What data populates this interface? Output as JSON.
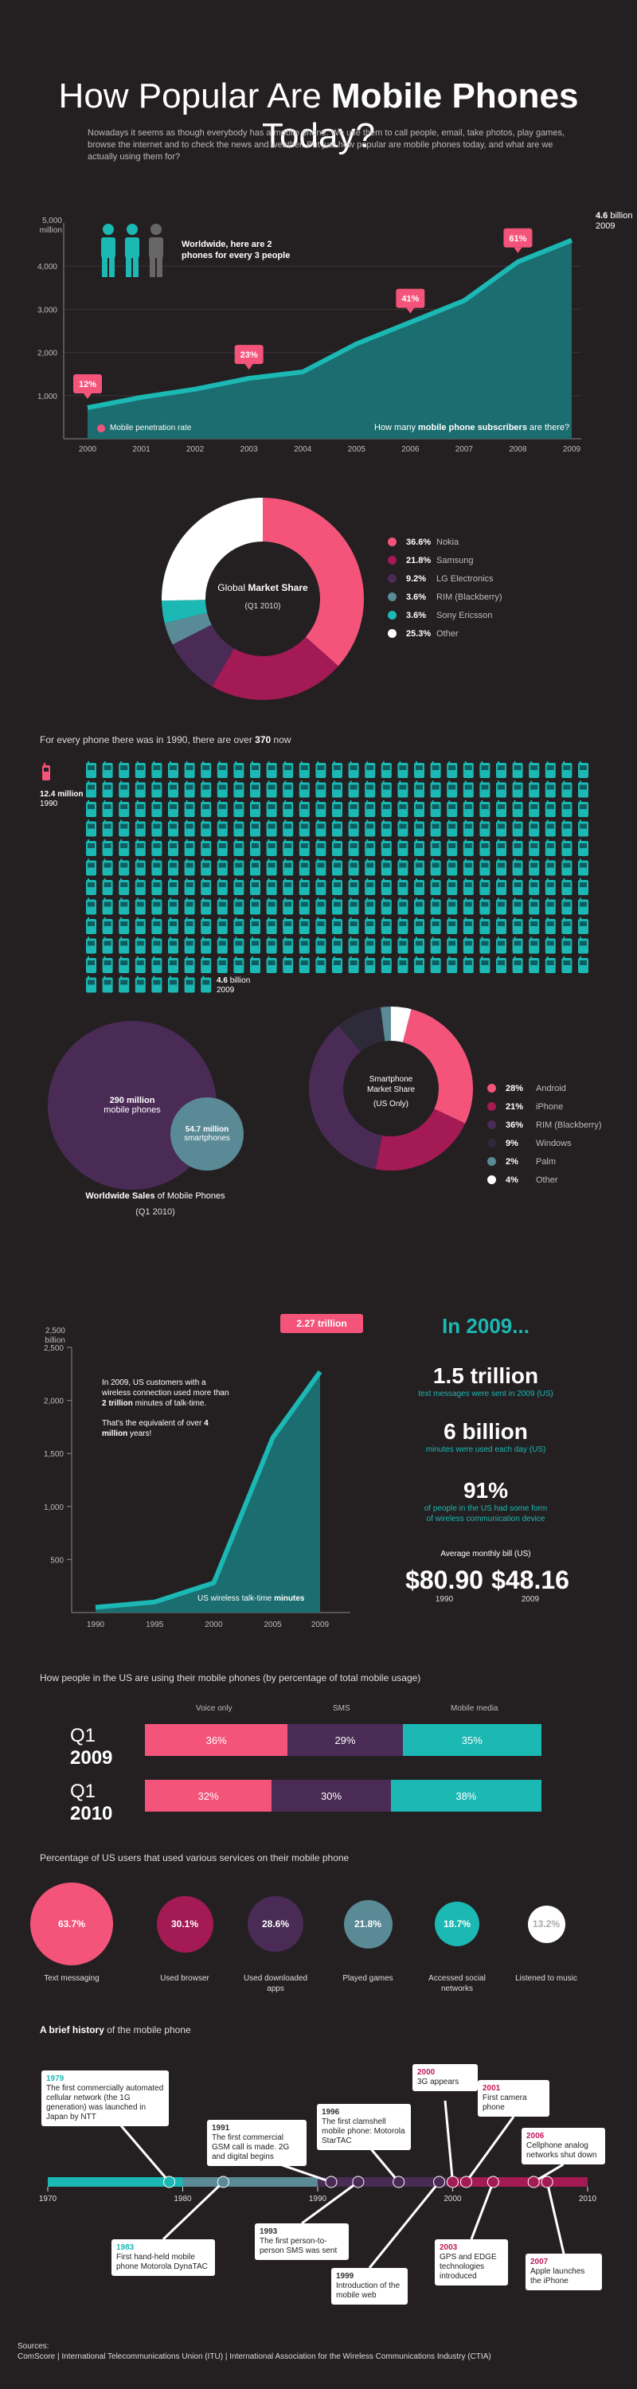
{
  "header": {
    "title_pre": "How Popular Are ",
    "title_bold": "Mobile Phones",
    "title_post": " Today?",
    "intro": "Nowadays it seems as though everybody has a mobile phone. We use them to call people, email, take photos, play games, browse the internet and to check the news and weather. But just how popular are mobile phones today, and what are we actually using them for?"
  },
  "subscribers": {
    "unit_top": "5,000",
    "unit_label": "million",
    "callout_pre": "Worldwide, here are 2",
    "callout_post": "phones for every 3 people",
    "legend": "Mobile penetration rate",
    "footer_pre": "How many ",
    "footer_bold": "mobile phone subscribers",
    "footer_post": " are there?",
    "end_value": "4.6",
    "end_unit": "billion",
    "end_year": "2009"
  },
  "share": {
    "center_pre": "Global ",
    "center_bold": "Market Share",
    "center_sub": "(Q1 2010)"
  },
  "phones_1990": {
    "intro_pre": "For every phone there was in 1990, there are over ",
    "intro_bold": "370",
    "intro_post": " now",
    "start_value": "12.4 million",
    "start_year": "1990",
    "end_value": "4.6",
    "end_unit": "billion",
    "end_year": "2009"
  },
  "sales": {
    "big_value": "290 million",
    "big_label": "mobile phones",
    "small_value": "54.7 million",
    "small_label": "smartphones",
    "caption_bold": "Worldwide Sales",
    "caption_post": " of Mobile Phones",
    "caption_sub": "(Q1 2010)",
    "smart_center1": "Smartphone",
    "smart_center2": "Market Share",
    "smart_center3": "(US Only)"
  },
  "talktime": {
    "unit_top": "2,500",
    "unit_label": "billion",
    "peak_label": "2.27 trillion",
    "text1_pre": "In 2009, US customers with a wireless connection used more than ",
    "text1_bold": "2 trillion",
    "text1_post": " minutes of talk-time.",
    "text2_pre": "That's the equivalent of over ",
    "text2_bold": "4 million",
    "text2_post": " years!",
    "footer_pre": "US wireless talk-time ",
    "footer_bold": "minutes"
  },
  "in2009": {
    "heading": "In 2009...",
    "stat1": "1.5 trillion",
    "stat1_cap": "text messages were sent in 2009 (US)",
    "stat2": "6 billion",
    "stat2_cap": "minutes were used each day (US)",
    "stat3": "91%",
    "stat3_cap1": "of people in the US had some form",
    "stat3_cap2": "of wireless communication device",
    "bill_label": "Average monthly bill (US)",
    "bill1": "$80.90",
    "bill1_year": "1990",
    "bill2": "$48.16",
    "bill2_year": "2009"
  },
  "usage": {
    "heading": "How people in the US are using their mobile phones  (by percentage of total mobile usage)",
    "col1": "Voice only",
    "col2": "SMS",
    "col3": "Mobile media",
    "rows": [
      {
        "pre": "Q1 ",
        "year": "2009",
        "v1": "36%",
        "v2": "29%",
        "v3": "35%"
      },
      {
        "pre": "Q1 ",
        "year": "2010",
        "v1": "32%",
        "v2": "30%",
        "v3": "38%"
      }
    ]
  },
  "services": {
    "heading": "Percentage of US users that used various services on their mobile phone",
    "items": [
      {
        "pct": "63.7%",
        "label": "Text messaging",
        "label2": "",
        "color": "#f4547a"
      },
      {
        "pct": "30.1%",
        "label": "Used browser",
        "label2": "",
        "color": "#a31a55"
      },
      {
        "pct": "28.6%",
        "label": "Used downloaded",
        "label2": "apps",
        "color": "#4a2b55"
      },
      {
        "pct": "21.8%",
        "label": "Played games",
        "label2": "",
        "color": "#5a8a95"
      },
      {
        "pct": "18.7%",
        "label": "Accessed social",
        "label2": "networks",
        "color": "#1bb8b4"
      },
      {
        "pct": "13.2%",
        "label": "Listened to music",
        "label2": "",
        "color": "#ffffff"
      }
    ]
  },
  "history": {
    "heading_bold": "A brief history",
    "heading_post": " of the mobile phone",
    "axis": [
      "1970",
      "1980",
      "1990",
      "2000",
      "2010"
    ],
    "events": [
      {
        "year": "1979",
        "text": "The first commercially automated cellular network (the 1G generation) was launched in Japan by NTT"
      },
      {
        "year": "1983",
        "text": "First hand-held mobile phone Motorola DynaTAC"
      },
      {
        "year": "1991",
        "text": "The first commercial GSM call is made. 2G and digital begins"
      },
      {
        "year": "1993",
        "text": "The first person-to-person SMS was sent"
      },
      {
        "year": "1996",
        "text": "The first clamshell mobile phone: Motorola StarTAC"
      },
      {
        "year": "1999",
        "text": "Introduction of the mobile web"
      },
      {
        "year": "2000",
        "text": "3G appears"
      },
      {
        "year": "2001",
        "text": "First camera phone"
      },
      {
        "year": "2003",
        "text": "GPS and EDGE technologies introduced"
      },
      {
        "year": "2006",
        "text": "Cellphone analog networks shut down"
      },
      {
        "year": "2007",
        "text": "Apple launches the iPhone"
      }
    ]
  },
  "sources": {
    "label": "Sources:",
    "text": "ComScore | International Telecommunications Union (ITU) | International Association for the Wireless Communications Industry (CTIA)"
  },
  "chart_data": [
    {
      "type": "area",
      "title": "How many mobile phone subscribers are there?",
      "ylabel": "million",
      "ylim": [
        0,
        5000
      ],
      "yticks": [
        "1,000",
        "2,000",
        "3,000",
        "4,000",
        "5,000"
      ],
      "x": [
        "2000",
        "2001",
        "2002",
        "2003",
        "2004",
        "2005",
        "2006",
        "2007",
        "2008",
        "2009"
      ],
      "values": [
        720,
        960,
        1150,
        1400,
        1550,
        2200,
        2700,
        3200,
        4100,
        4600
      ],
      "annotations": [
        {
          "x": "2000",
          "label": "12%"
        },
        {
          "x": "2003",
          "label": "23%"
        },
        {
          "x": "2006",
          "label": "41%"
        },
        {
          "x": "2008",
          "label": "61%"
        }
      ]
    },
    {
      "type": "pie",
      "title": "Global Market Share (Q1 2010)",
      "slices": [
        {
          "label": "Nokia",
          "value": 36.6,
          "pct": "36.6%",
          "color": "#f4547a"
        },
        {
          "label": "Samsung",
          "value": 21.8,
          "pct": "21.8%",
          "color": "#a31a55"
        },
        {
          "label": "LG Electronics",
          "value": 9.2,
          "pct": "9.2%",
          "color": "#4a2b55"
        },
        {
          "label": "RIM (Blackberry)",
          "value": 3.6,
          "pct": "3.6%",
          "color": "#5a8a95"
        },
        {
          "label": "Sony Ericsson",
          "value": 3.6,
          "pct": "3.6%",
          "color": "#1bb8b4"
        },
        {
          "label": "Other",
          "value": 25.3,
          "pct": "25.3%",
          "color": "#ffffff"
        }
      ]
    },
    {
      "type": "pie",
      "title": "Smartphone Market Share (US Only)",
      "slices": [
        {
          "label": "Android",
          "value": 28,
          "pct": "28%",
          "color": "#f4547a"
        },
        {
          "label": "iPhone",
          "value": 21,
          "pct": "21%",
          "color": "#a31a55"
        },
        {
          "label": "RIM (Blackberry)",
          "value": 36,
          "pct": "36%",
          "color": "#4a2b55"
        },
        {
          "label": "Windows",
          "value": 9,
          "pct": "9%",
          "color": "#2d2a3a"
        },
        {
          "label": "Palm",
          "value": 2,
          "pct": "2%",
          "color": "#5a8a95"
        },
        {
          "label": "Other",
          "value": 4,
          "pct": "4%",
          "color": "#ffffff"
        }
      ]
    },
    {
      "type": "area",
      "title": "US wireless talk-time minutes",
      "ylabel": "billion",
      "ylim": [
        0,
        2500
      ],
      "yticks": [
        "500",
        "1,000",
        "1,500",
        "2,000",
        "2,500"
      ],
      "x": [
        "1990",
        "1995",
        "2000",
        "2005",
        "2009"
      ],
      "values": [
        50,
        100,
        280,
        1650,
        2270
      ]
    }
  ]
}
